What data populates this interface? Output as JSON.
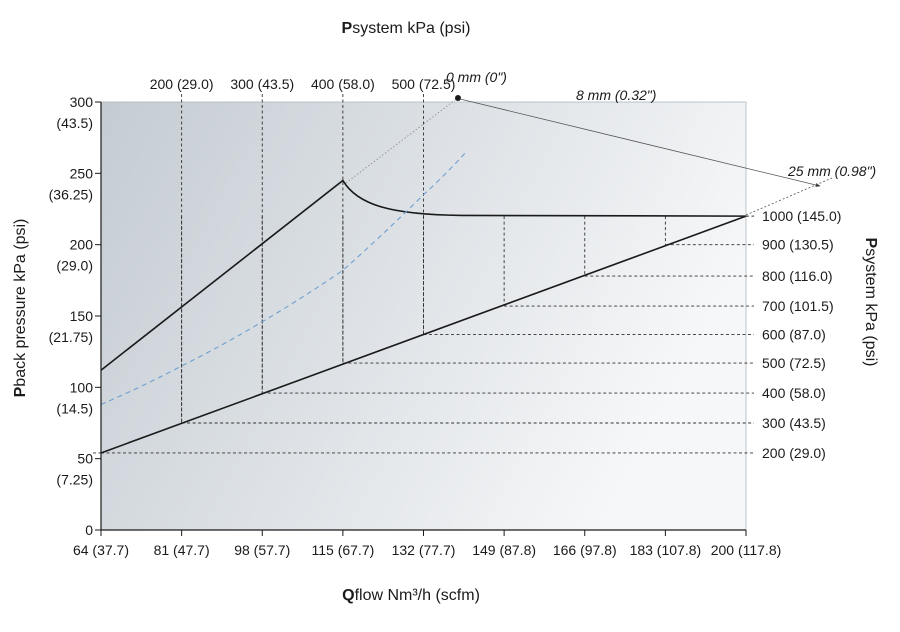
{
  "chart_data": {
    "type": "line",
    "title_top": {
      "bold": "P",
      "rest": "system kPa (psi)"
    },
    "xlabel": {
      "bold": "Q",
      "rest": "flow Nm³/h (scfm)"
    },
    "ylabel": {
      "bold": "P",
      "rest": "back pressure kPa (psi)"
    },
    "right_label": {
      "bold": "P",
      "rest": "system kPa (psi)"
    },
    "x_range": [
      64,
      200
    ],
    "y_range": [
      0,
      300
    ],
    "x_ticks": [
      {
        "value": 64,
        "label": "64 (37.7)"
      },
      {
        "value": 81,
        "label": "81 (47.7)"
      },
      {
        "value": 98,
        "label": "98 (57.7)"
      },
      {
        "value": 115,
        "label": "115 (67.7)"
      },
      {
        "value": 132,
        "label": "132 (77.7)"
      },
      {
        "value": 149,
        "label": "149 (87.8)"
      },
      {
        "value": 166,
        "label": "166 (97.8)"
      },
      {
        "value": 183,
        "label": "183 (107.8)"
      },
      {
        "value": 200,
        "label": "200 (117.8)"
      }
    ],
    "y_ticks": [
      {
        "value": 0,
        "line1": "0",
        "line2": ""
      },
      {
        "value": 50,
        "line1": "50",
        "line2": "(7.25)"
      },
      {
        "value": 100,
        "line1": "100",
        "line2": "(14.5)"
      },
      {
        "value": 150,
        "line1": "150",
        "line2": "(21.75)"
      },
      {
        "value": 200,
        "line1": "200",
        "line2": "(29.0)"
      },
      {
        "value": 250,
        "line1": "250",
        "line2": "(36.25)"
      },
      {
        "value": 300,
        "line1": "300",
        "line2": "(43.5)"
      }
    ],
    "top_ticks": [
      {
        "x": 81,
        "label": "200 (29.0)"
      },
      {
        "x": 98,
        "label": "300 (43.5)"
      },
      {
        "x": 115,
        "label": "400 (58.0)"
      },
      {
        "x": 132,
        "label": "500 (72.5)"
      }
    ],
    "right_ticks": [
      {
        "x": 200,
        "y": 220,
        "label": "1000 (145.0)"
      },
      {
        "x": 183,
        "y": 200,
        "label": "900 (130.5)"
      },
      {
        "x": 166,
        "y": 178,
        "label": "800 (116.0)"
      },
      {
        "x": 149,
        "y": 157,
        "label": "700 (101.5)"
      },
      {
        "x": 132,
        "y": 137,
        "label": "600 (87.0)"
      },
      {
        "x": 115,
        "y": 117,
        "label": "500 (72.5)"
      },
      {
        "x": 98,
        "y": 96,
        "label": "400 (58.0)"
      },
      {
        "x": 81,
        "y": 75,
        "label": "300 (43.5)"
      },
      {
        "x": 64,
        "y": 54,
        "label": "200 (29.0)"
      }
    ],
    "series": [
      {
        "name": "0 mm (0\")",
        "style": "solid",
        "color": "#1a1a1a",
        "x": [
          64,
          115,
          117,
          120,
          125,
          132,
          140,
          150,
          160,
          180,
          200
        ],
        "y": [
          112,
          245,
          236,
          229,
          224,
          221,
          220,
          220,
          220,
          220,
          220
        ]
      },
      {
        "name": "8 mm (0.32\")",
        "style": "dashed",
        "color": "#6f9fd0",
        "x": [
          64,
          81,
          98,
          115,
          132,
          141
        ],
        "y": [
          88,
          115,
          146,
          182,
          235,
          265
        ]
      },
      {
        "name": "25 mm (0.98\")",
        "style": "solid",
        "color": "#1a1a1a",
        "x": [
          64,
          200
        ],
        "y": [
          54,
          220
        ]
      }
    ],
    "annotations": [
      {
        "text": "0 mm (0\")"
      },
      {
        "text": "8 mm (0.32\")"
      },
      {
        "text": "25 mm (0.98\")"
      }
    ],
    "colors": {
      "bg_dark": "#c4ccd2",
      "bg_light": "#f4f5f6",
      "line": "#1a1a1a",
      "dashed_series": "#6f9fd0"
    },
    "grid": false
  }
}
